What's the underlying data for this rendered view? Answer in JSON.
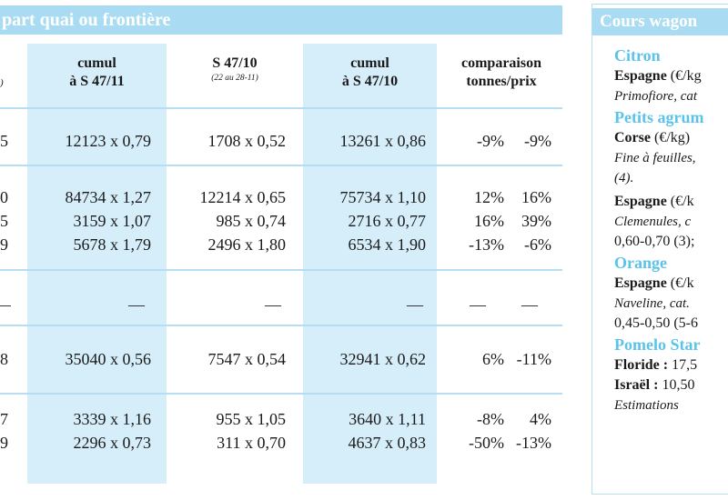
{
  "table": {
    "title": "part quai ou frontière",
    "header_left_fragment": ")",
    "headers": [
      {
        "line1": "cumul",
        "line2": "à S 47/11",
        "sub": ""
      },
      {
        "line1": "S 47/10",
        "line2": "",
        "sub": "(22 au 28-11)"
      },
      {
        "line1": "cumul",
        "line2": "à S 47/10",
        "sub": ""
      },
      {
        "line1": "comparaison",
        "line2": "tonnes/prix",
        "sub": ""
      }
    ],
    "rows": [
      {
        "edge": "5",
        "c1": "12123 x 0,79",
        "c2": "1708 x 0,52",
        "c3": "13261 x 0,86",
        "pct_t": "-9%",
        "pct_p": "-9%"
      },
      {
        "edge": "0",
        "c1": "84734 x 1,27",
        "c2": "12214 x 0,65",
        "c3": "75734 x 1,10",
        "pct_t": "12%",
        "pct_p": "16%"
      },
      {
        "edge": "5",
        "c1": "3159 x 1,07",
        "c2": "985 x 0,74",
        "c3": "2716 x 0,77",
        "pct_t": "16%",
        "pct_p": "39%"
      },
      {
        "edge": "9",
        "c1": "5678 x 1,79",
        "c2": "2496 x 1,80",
        "c3": "6534 x 1,90",
        "pct_t": "-13%",
        "pct_p": "-6%"
      },
      {
        "edge": "—",
        "c1": "—",
        "c2": "—",
        "c3": "—",
        "pct_t": "—",
        "pct_p": "—"
      },
      {
        "edge": "8",
        "c1": "35040 x 0,56",
        "c2": "7547 x 0,54",
        "c3": "32941 x 0,62",
        "pct_t": "6%",
        "pct_p": "-11%"
      },
      {
        "edge": "7",
        "c1": "3339 x 1,16",
        "c2": "955 x 1,05",
        "c3": "3640 x 1,11",
        "pct_t": "-8%",
        "pct_p": "4%"
      },
      {
        "edge": "9",
        "c1": "2296 x 0,73",
        "c2": "311 x 0,70",
        "c3": "4637 x 0,83",
        "pct_t": "-50%",
        "pct_p": "-13%"
      }
    ]
  },
  "sidebar": {
    "title": "Cours wagon",
    "citron": {
      "name": "Citron",
      "origin": "Espagne",
      "unit": " (€/kg",
      "detail": "Primofiore, cat"
    },
    "petits": {
      "name": "Petits agrum",
      "origin1": "Corse",
      "unit1": " (€/kg)",
      "detail1": "Fine à feuilles,",
      "detail2": "(4).",
      "origin2": "Espagne",
      "unit2": " (€/k",
      "detail3": "Clemenules, c",
      "detail4": "0,60-0,70 (3);"
    },
    "orange": {
      "name": "Orange",
      "origin": "Espagne",
      "unit": " (€/k",
      "detail1": "Naveline, cat.",
      "detail2": "0,45-0,50 (5-6"
    },
    "pomelo": {
      "name": "Pomelo Star",
      "origin1": "Floride :",
      "value1": " 17,5",
      "origin2": "Israël :",
      "value2": " 10,50",
      "note": "Estimations"
    }
  }
}
